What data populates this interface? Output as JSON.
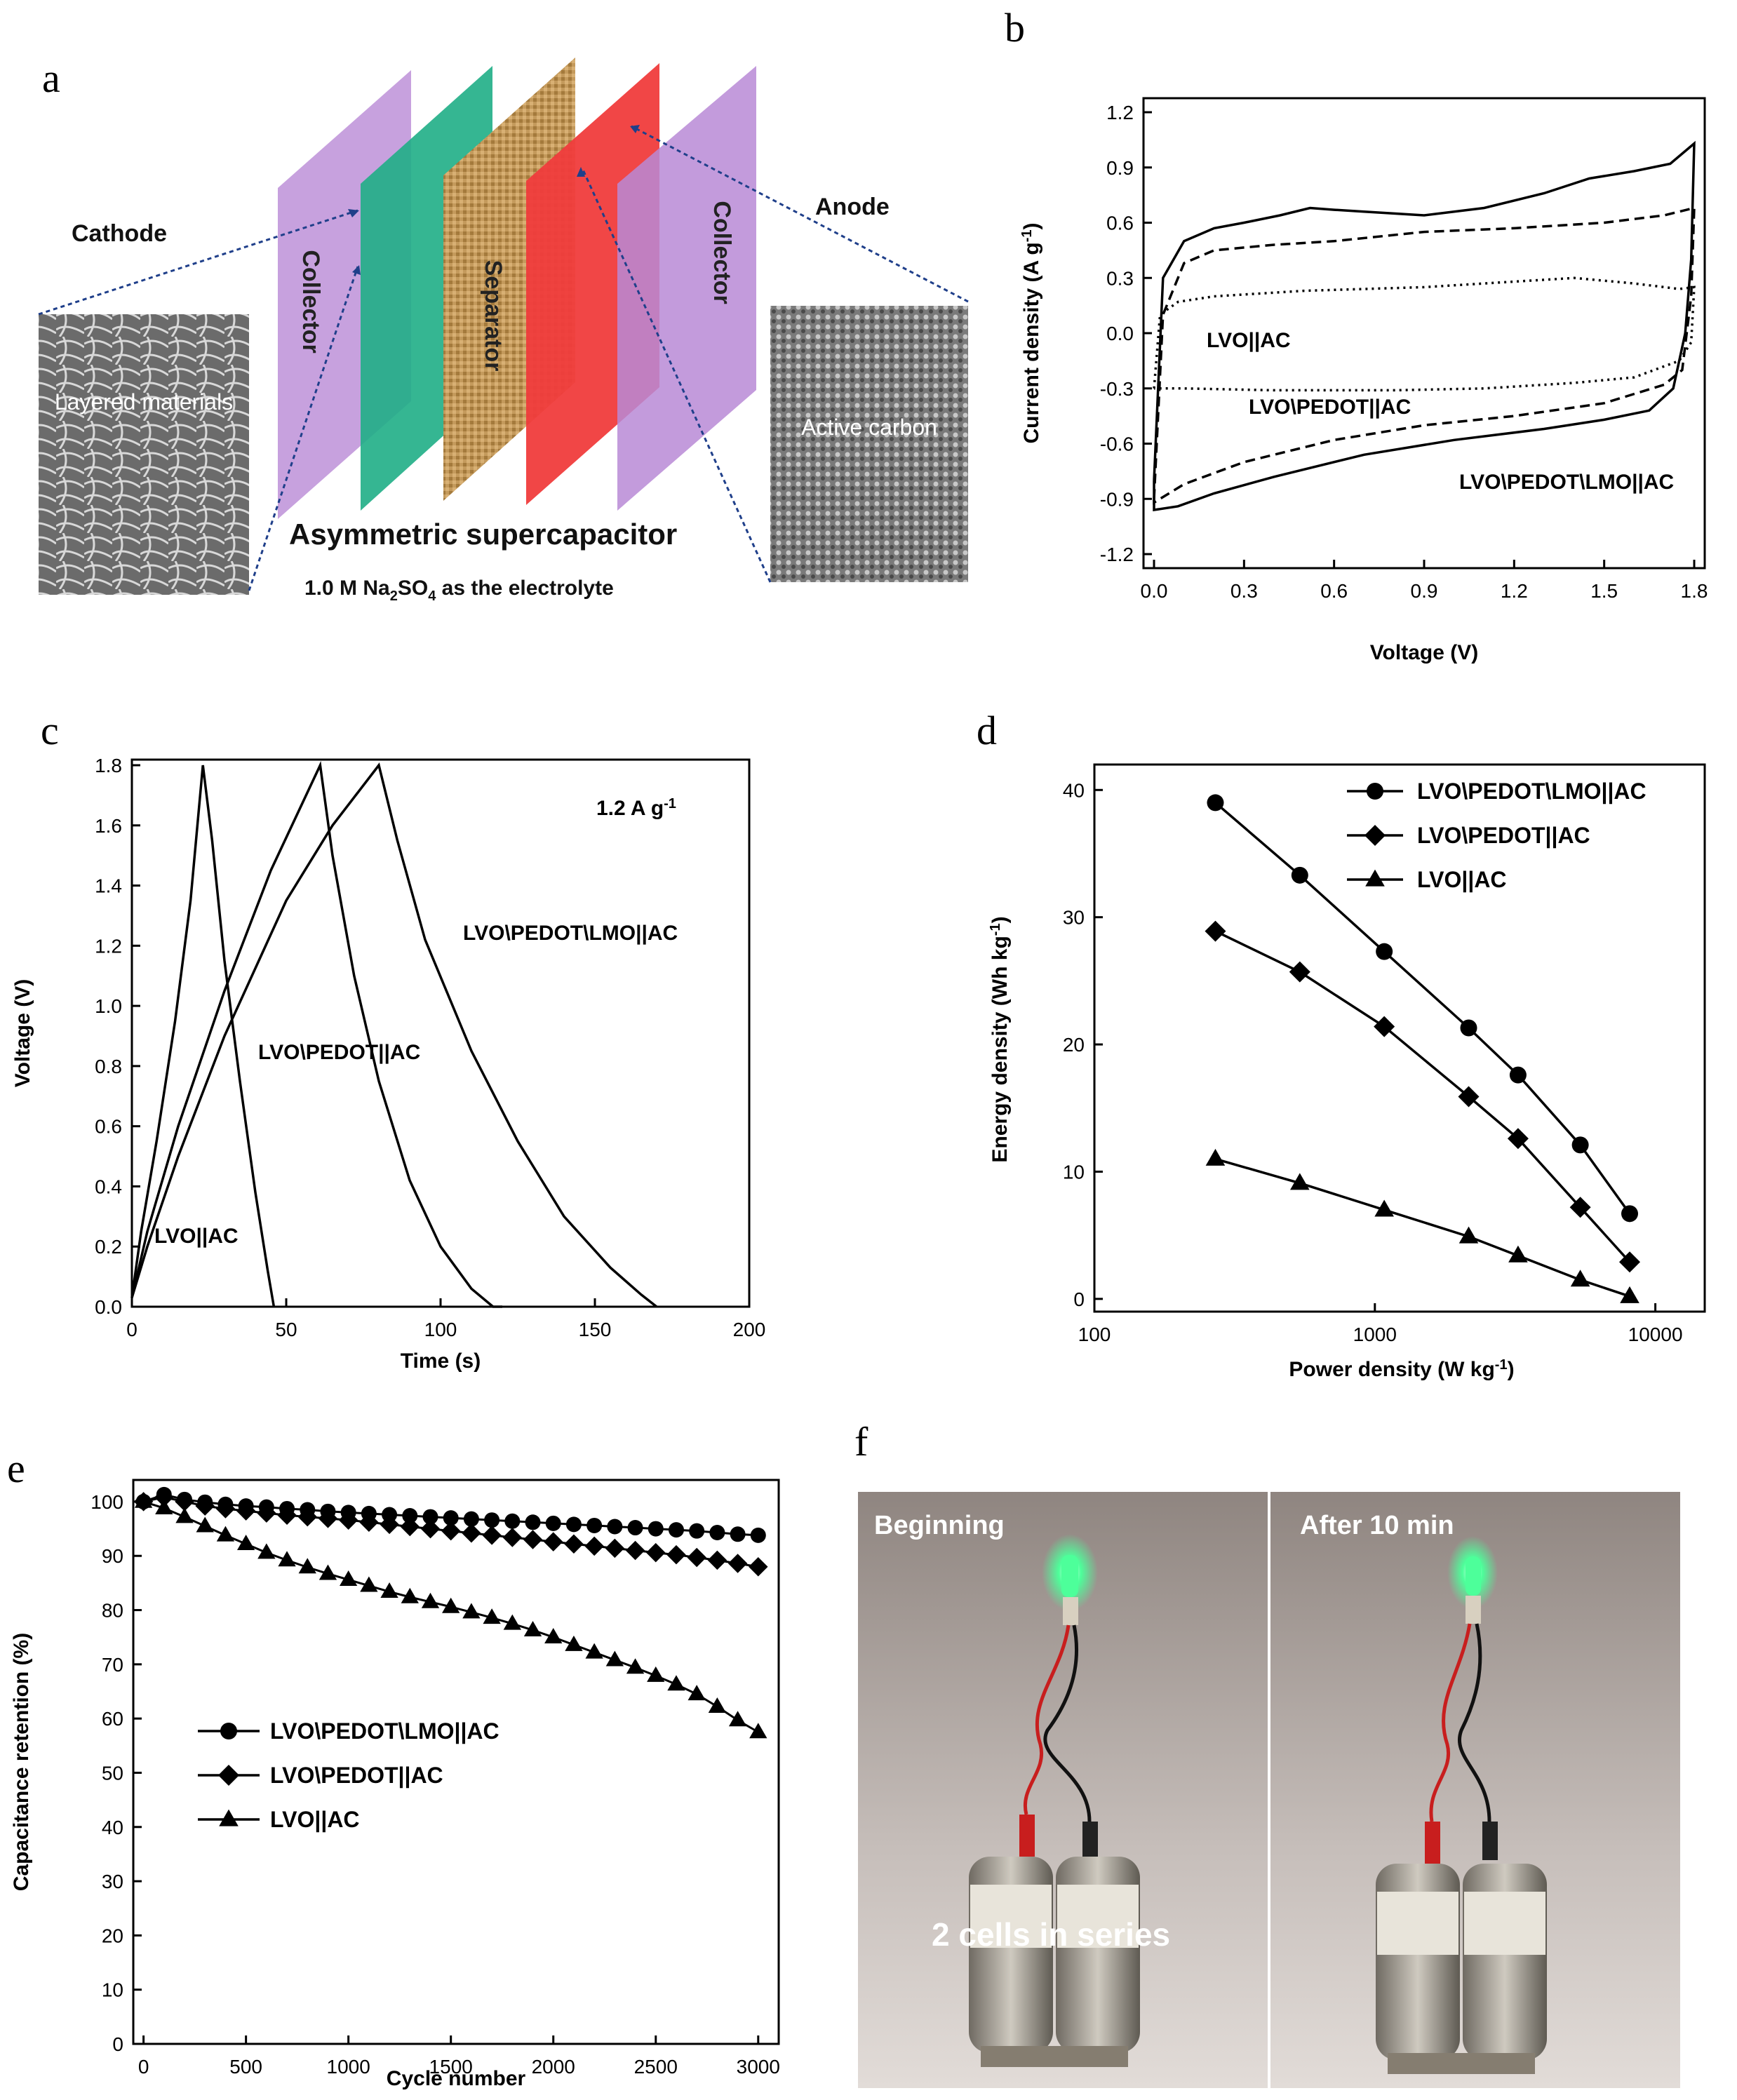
{
  "panel_labels": {
    "a": "a",
    "b": "b",
    "c": "c",
    "d": "d",
    "e": "e",
    "f": "f"
  },
  "schematic": {
    "cathode": "Cathode",
    "anode": "Anode",
    "collector_left": "Collector",
    "collector_right": "Collector",
    "separator": "Separator",
    "sem_left": "Layered materials",
    "sem_right": "Active carbon",
    "title": "Asymmetric supercapacitor",
    "electrolyte_pre": "1.0 M Na",
    "electrolyte_sub1": "2",
    "electrolyte_mid": "SO",
    "electrolyte_sub2": "4",
    "electrolyte_post": " as the electrolyte",
    "colors": {
      "collector": "#b07fd0",
      "cathode": "#1fae86",
      "separator": "#c49a5c",
      "anode": "#f03c3c"
    }
  },
  "chart_data": [
    {
      "id": "b",
      "type": "line",
      "title": "",
      "xlabel": "Voltage (V)",
      "ylabel": "Current density (A g",
      "ylabel_sup": "-1",
      "ylabel_end": ")",
      "xlim": [
        0,
        1.8
      ],
      "ylim": [
        -1.2,
        1.2
      ],
      "xticks": [
        "0.0",
        "0.3",
        "0.6",
        "0.9",
        "1.2",
        "1.5",
        "1.8"
      ],
      "yticks": [
        "-1.2",
        "-0.9",
        "-0.6",
        "-0.3",
        "0.0",
        "0.3",
        "0.6",
        "0.9",
        "1.2"
      ],
      "series": [
        {
          "name": "LVO\\PEDOT\\LMO||AC",
          "style": "solid",
          "upper": [
            [
              0.0,
              -0.8
            ],
            [
              0.03,
              0.3
            ],
            [
              0.1,
              0.5
            ],
            [
              0.2,
              0.57
            ],
            [
              0.3,
              0.6
            ],
            [
              0.42,
              0.64
            ],
            [
              0.52,
              0.68
            ],
            [
              0.6,
              0.67
            ],
            [
              0.7,
              0.66
            ],
            [
              0.9,
              0.64
            ],
            [
              1.1,
              0.68
            ],
            [
              1.3,
              0.76
            ],
            [
              1.45,
              0.84
            ],
            [
              1.6,
              0.88
            ],
            [
              1.72,
              0.92
            ],
            [
              1.8,
              1.03
            ]
          ],
          "lower": [
            [
              1.8,
              1.03
            ],
            [
              1.79,
              0.4
            ],
            [
              1.77,
              0.0
            ],
            [
              1.73,
              -0.3
            ],
            [
              1.65,
              -0.42
            ],
            [
              1.5,
              -0.47
            ],
            [
              1.3,
              -0.52
            ],
            [
              1.0,
              -0.58
            ],
            [
              0.7,
              -0.66
            ],
            [
              0.4,
              -0.78
            ],
            [
              0.2,
              -0.87
            ],
            [
              0.08,
              -0.94
            ],
            [
              0.0,
              -0.96
            ]
          ]
        },
        {
          "name": "LVO\\PEDOT||AC",
          "style": "dashed",
          "upper": [
            [
              0.0,
              -0.9
            ],
            [
              0.03,
              0.1
            ],
            [
              0.1,
              0.38
            ],
            [
              0.2,
              0.45
            ],
            [
              0.4,
              0.48
            ],
            [
              0.6,
              0.5
            ],
            [
              0.9,
              0.55
            ],
            [
              1.2,
              0.57
            ],
            [
              1.5,
              0.6
            ],
            [
              1.7,
              0.64
            ],
            [
              1.8,
              0.68
            ]
          ],
          "lower": [
            [
              1.8,
              0.68
            ],
            [
              1.79,
              0.2
            ],
            [
              1.76,
              -0.2
            ],
            [
              1.7,
              -0.28
            ],
            [
              1.5,
              -0.38
            ],
            [
              1.2,
              -0.45
            ],
            [
              0.9,
              -0.5
            ],
            [
              0.6,
              -0.58
            ],
            [
              0.3,
              -0.7
            ],
            [
              0.1,
              -0.82
            ],
            [
              0.0,
              -0.92
            ]
          ]
        },
        {
          "name": "LVO||AC",
          "style": "dotted",
          "upper": [
            [
              0.0,
              -0.3
            ],
            [
              0.02,
              0.1
            ],
            [
              0.08,
              0.17
            ],
            [
              0.2,
              0.2
            ],
            [
              0.5,
              0.23
            ],
            [
              0.9,
              0.25
            ],
            [
              1.2,
              0.28
            ],
            [
              1.4,
              0.3
            ],
            [
              1.6,
              0.27
            ],
            [
              1.75,
              0.24
            ],
            [
              1.8,
              0.25
            ]
          ],
          "lower": [
            [
              1.8,
              0.25
            ],
            [
              1.79,
              -0.05
            ],
            [
              1.75,
              -0.15
            ],
            [
              1.6,
              -0.24
            ],
            [
              1.4,
              -0.27
            ],
            [
              1.1,
              -0.3
            ],
            [
              0.8,
              -0.31
            ],
            [
              0.4,
              -0.31
            ],
            [
              0.1,
              -0.3
            ],
            [
              0.0,
              -0.3
            ]
          ]
        }
      ],
      "labels": [
        "LVO||AC",
        "LVO\\PEDOT||AC",
        "LVO\\PEDOT\\LMO||AC"
      ]
    },
    {
      "id": "c",
      "type": "line",
      "title": "",
      "xlabel": "Time (s)",
      "ylabel": "Voltage (V)",
      "xlim": [
        0,
        200
      ],
      "ylim": [
        0,
        1.8
      ],
      "xticks": [
        "0",
        "50",
        "100",
        "150",
        "200"
      ],
      "yticks": [
        "0.0",
        "0.2",
        "0.4",
        "0.6",
        "0.8",
        "1.0",
        "1.2",
        "1.4",
        "1.6",
        "1.8"
      ],
      "annotation": "1.2 A g",
      "annotation_sup": "-1",
      "series": [
        {
          "name": "LVO||AC",
          "points": [
            [
              0,
              0.03
            ],
            [
              3,
              0.25
            ],
            [
              8,
              0.55
            ],
            [
              14,
              0.95
            ],
            [
              19,
              1.35
            ],
            [
              23,
              1.8
            ],
            [
              26,
              1.55
            ],
            [
              30,
              1.15
            ],
            [
              35,
              0.75
            ],
            [
              40,
              0.38
            ],
            [
              44,
              0.12
            ],
            [
              46,
              0.0
            ]
          ]
        },
        {
          "name": "LVO\\PEDOT||AC",
          "points": [
            [
              0,
              0.03
            ],
            [
              5,
              0.25
            ],
            [
              15,
              0.6
            ],
            [
              30,
              1.05
            ],
            [
              45,
              1.45
            ],
            [
              61,
              1.8
            ],
            [
              65,
              1.5
            ],
            [
              72,
              1.1
            ],
            [
              80,
              0.75
            ],
            [
              90,
              0.42
            ],
            [
              100,
              0.2
            ],
            [
              110,
              0.06
            ],
            [
              117,
              0.0
            ],
            [
              120,
              0.0
            ]
          ]
        },
        {
          "name": "LVO\\PEDOT\\LMO||AC",
          "points": [
            [
              0,
              0.03
            ],
            [
              5,
              0.2
            ],
            [
              15,
              0.5
            ],
            [
              30,
              0.9
            ],
            [
              50,
              1.35
            ],
            [
              65,
              1.6
            ],
            [
              80,
              1.8
            ],
            [
              86,
              1.55
            ],
            [
              95,
              1.22
            ],
            [
              110,
              0.85
            ],
            [
              125,
              0.55
            ],
            [
              140,
              0.3
            ],
            [
              155,
              0.13
            ],
            [
              165,
              0.04
            ],
            [
              170,
              0.0
            ]
          ]
        }
      ],
      "labels": [
        "LVO\\PEDOT\\LMO||AC",
        "LVO\\PEDOT||AC",
        "LVO||AC"
      ]
    },
    {
      "id": "d",
      "type": "line",
      "xscale": "log",
      "title": "",
      "xlabel": "Power density (W kg",
      "xlabel_sup": "-1",
      "xlabel_end": ")",
      "ylabel": "Energy density (Wh kg",
      "ylabel_sup": "-1",
      "ylabel_end": ")",
      "xlim": [
        100,
        15000
      ],
      "ylim": [
        -1,
        42
      ],
      "xticks": [
        "100",
        "1000",
        "10000"
      ],
      "yticks": [
        "0",
        "10",
        "20",
        "30",
        "40"
      ],
      "series": [
        {
          "name": "LVO\\PEDOT\\LMO||AC",
          "marker": "circle",
          "x": [
            270,
            540,
            1080,
            2160,
            3240,
            5400,
            8100
          ],
          "y": [
            39.0,
            33.3,
            27.3,
            21.3,
            17.6,
            12.1,
            6.7
          ]
        },
        {
          "name": "LVO\\PEDOT||AC",
          "marker": "diamond",
          "x": [
            270,
            540,
            1080,
            2160,
            3240,
            5400,
            8100
          ],
          "y": [
            28.9,
            25.7,
            21.4,
            15.9,
            12.6,
            7.2,
            2.9
          ]
        },
        {
          "name": "LVO||AC",
          "marker": "triangle",
          "x": [
            270,
            540,
            1080,
            2160,
            3240,
            5400,
            8100
          ],
          "y": [
            11.0,
            9.1,
            7.0,
            4.9,
            3.4,
            1.5,
            0.2
          ]
        }
      ],
      "legend": "top-right"
    },
    {
      "id": "e",
      "type": "line",
      "title": "",
      "xlabel": "Cycle number",
      "ylabel": "Capacitance retention (%)",
      "xlim": [
        -50,
        3100
      ],
      "ylim": [
        0,
        104
      ],
      "xticks": [
        "0",
        "500",
        "1000",
        "1500",
        "2000",
        "2500",
        "3000"
      ],
      "yticks": [
        "0",
        "10",
        "20",
        "30",
        "40",
        "50",
        "60",
        "70",
        "80",
        "90",
        "100"
      ],
      "series": [
        {
          "name": "LVO\\PEDOT\\LMO||AC",
          "marker": "circle",
          "x": [
            0,
            100,
            200,
            300,
            400,
            500,
            600,
            700,
            800,
            900,
            1000,
            1100,
            1200,
            1300,
            1400,
            1500,
            1600,
            1700,
            1800,
            1900,
            2000,
            2100,
            2200,
            2300,
            2400,
            2500,
            2600,
            2700,
            2800,
            2900,
            3000
          ],
          "y": [
            100,
            101.3,
            100.4,
            99.9,
            99.5,
            99.2,
            99.0,
            98.7,
            98.5,
            98.2,
            98.0,
            97.8,
            97.6,
            97.4,
            97.2,
            97.0,
            96.8,
            96.6,
            96.4,
            96.2,
            96.0,
            95.8,
            95.6,
            95.4,
            95.2,
            95.0,
            94.8,
            94.6,
            94.3,
            94.0,
            93.8
          ]
        },
        {
          "name": "LVO\\PEDOT||AC",
          "marker": "diamond",
          "x": [
            0,
            100,
            200,
            300,
            400,
            500,
            600,
            700,
            800,
            900,
            1000,
            1100,
            1200,
            1300,
            1400,
            1500,
            1600,
            1700,
            1800,
            1900,
            2000,
            2100,
            2200,
            2300,
            2400,
            2500,
            2600,
            2700,
            2800,
            2900,
            3000
          ],
          "y": [
            100,
            100.8,
            100.0,
            99.2,
            98.7,
            98.3,
            97.9,
            97.5,
            97.2,
            96.9,
            96.6,
            96.2,
            95.8,
            95.4,
            95.0,
            94.6,
            94.2,
            93.8,
            93.4,
            93.0,
            92.6,
            92.2,
            91.8,
            91.4,
            91.0,
            90.6,
            90.2,
            89.7,
            89.2,
            88.6,
            88.0
          ]
        },
        {
          "name": "LVO||AC",
          "marker": "triangle",
          "x": [
            0,
            100,
            200,
            300,
            400,
            500,
            600,
            700,
            800,
            900,
            1000,
            1100,
            1200,
            1300,
            1400,
            1500,
            1600,
            1700,
            1800,
            1900,
            2000,
            2100,
            2200,
            2300,
            2400,
            2500,
            2600,
            2700,
            2800,
            2900,
            3000
          ],
          "y": [
            100,
            98.8,
            97.2,
            95.5,
            93.8,
            92.2,
            90.6,
            89.2,
            87.9,
            86.7,
            85.6,
            84.5,
            83.4,
            82.4,
            81.5,
            80.6,
            79.6,
            78.6,
            77.5,
            76.3,
            75.0,
            73.6,
            72.2,
            70.8,
            69.4,
            67.9,
            66.3,
            64.5,
            62.2,
            59.7,
            57.5
          ]
        }
      ],
      "legend": "lower-left"
    }
  ],
  "photo": {
    "caption_left": "Beginning",
    "caption_right": "After 10 min",
    "caption_cells": "2 cells in series",
    "led_color": "#4dff9a"
  }
}
